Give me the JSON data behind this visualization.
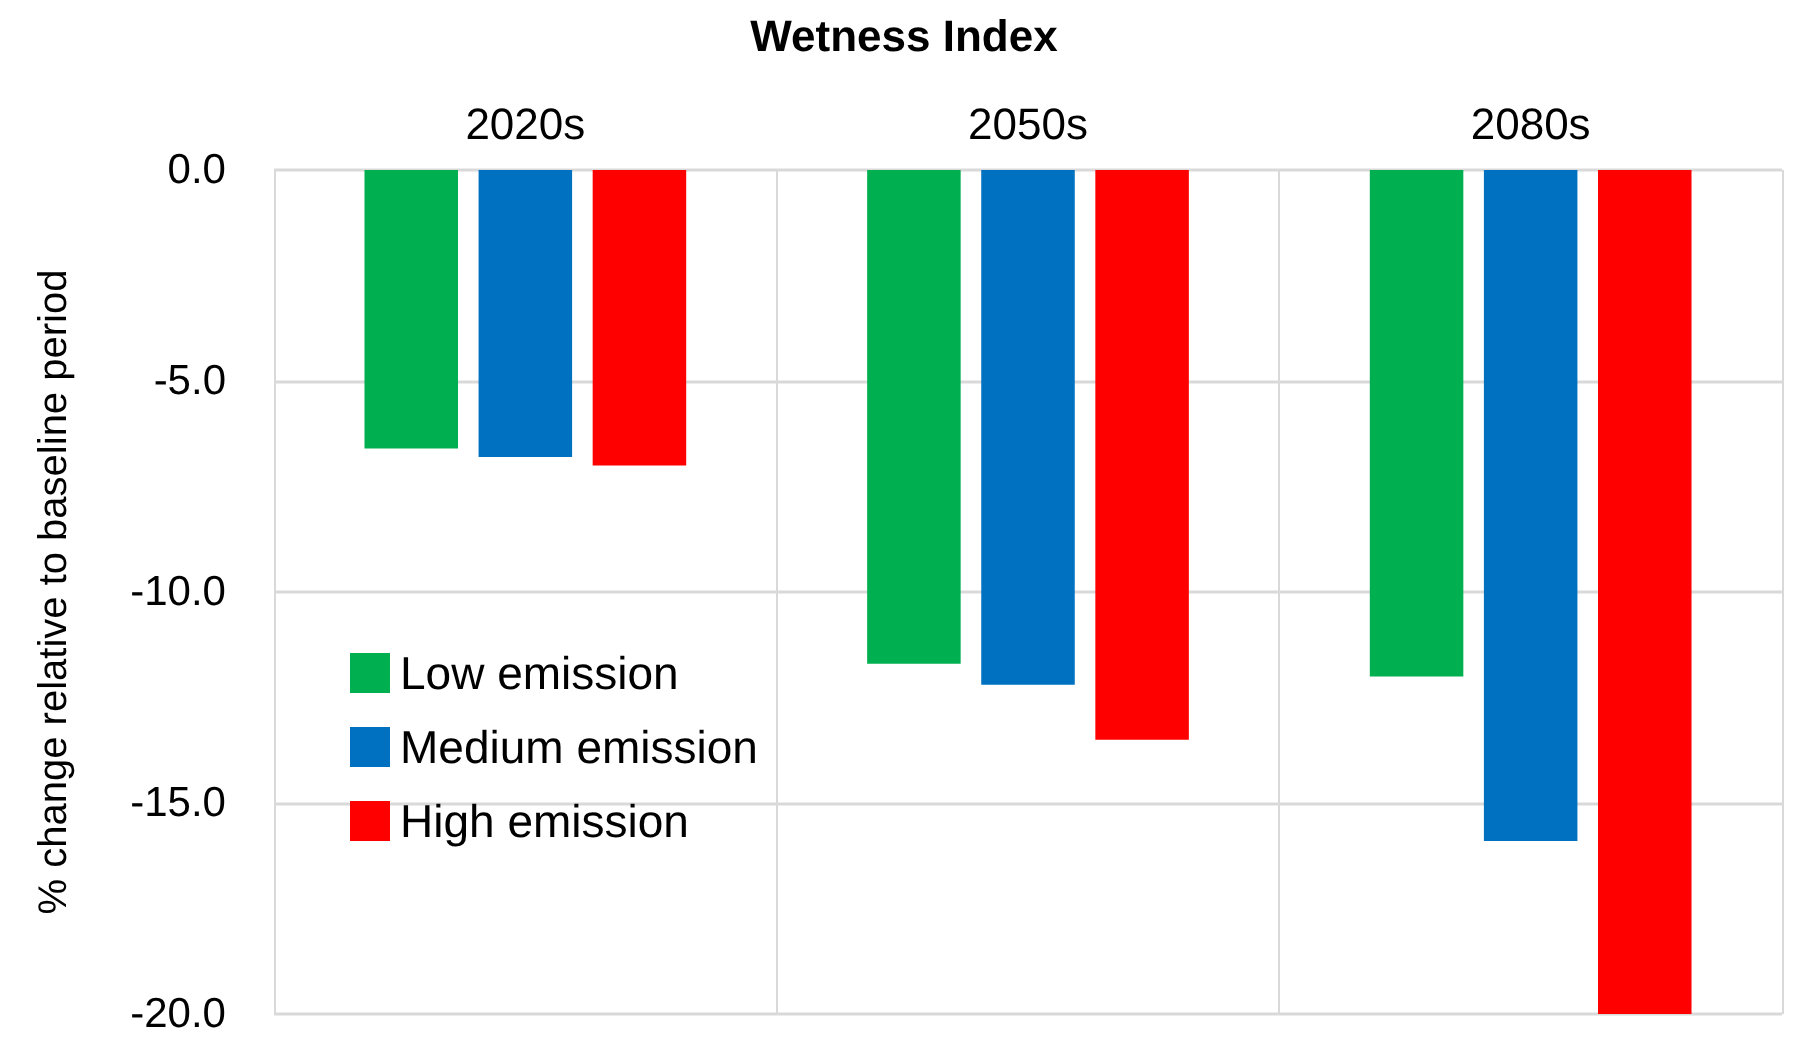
{
  "chart_data": {
    "type": "bar",
    "title": "Wetness Index",
    "ylabel": "% change relative to baseline period",
    "categories": [
      "2020s",
      "2050s",
      "2080s"
    ],
    "series": [
      {
        "name": "Low emission",
        "color": "#00b050",
        "values": [
          -6.6,
          -11.7,
          -12.0
        ]
      },
      {
        "name": "Medium emission",
        "color": "#0070c0",
        "values": [
          -6.8,
          -12.2,
          -15.9
        ]
      },
      {
        "name": "High emission",
        "color": "#ff0000",
        "values": [
          -7.0,
          -13.5,
          -20.0
        ]
      }
    ],
    "ylim": [
      -20,
      0
    ],
    "yticks": [
      {
        "value": 0,
        "label": "0.0"
      },
      {
        "value": -5,
        "label": "-5.0"
      },
      {
        "value": -10,
        "label": "-10.0"
      },
      {
        "value": -15,
        "label": "-15.0"
      },
      {
        "value": -20,
        "label": "-20.0"
      }
    ],
    "grid": true,
    "legend": "left"
  }
}
